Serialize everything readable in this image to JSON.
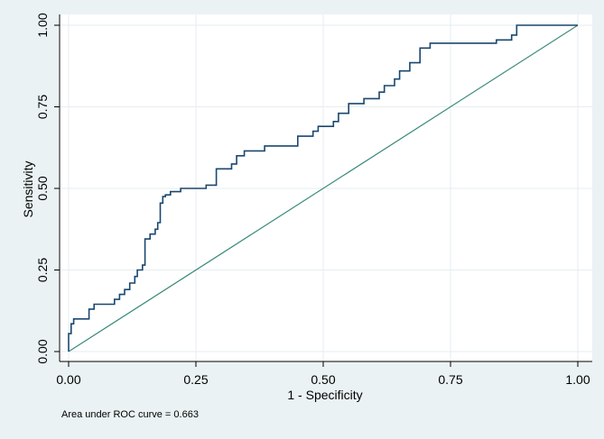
{
  "chart_data": {
    "type": "line",
    "xlabel": "1 - Specificity",
    "ylabel": "Sensitivity",
    "xlim": [
      0,
      1
    ],
    "ylim": [
      0,
      1
    ],
    "x_ticks": [
      0,
      0.25,
      0.5,
      0.75,
      1
    ],
    "x_tick_labels": [
      "0.00",
      "0.25",
      "0.50",
      "0.75",
      "1.00"
    ],
    "y_ticks": [
      0,
      0.25,
      0.5,
      0.75,
      1
    ],
    "y_tick_labels": [
      "0.00",
      "0.25",
      "0.50",
      "0.75",
      "1.00"
    ],
    "grid": true,
    "note": "Area under ROC curve = 0.663",
    "colors": {
      "background": "#eaf2f3",
      "plot_background": "#ffffff",
      "roc_line": "#1a476f",
      "reference_line": "#3a8a7a",
      "grid": "#e6eef0"
    },
    "series": [
      {
        "x": [
          0,
          0,
          0.005,
          0.005,
          0.01,
          0.01,
          0.02,
          0.02,
          0.04,
          0.04,
          0.05,
          0.05,
          0.09,
          0.09,
          0.1,
          0.1,
          0.11,
          0.11,
          0.12,
          0.12,
          0.13,
          0.13,
          0.135,
          0.135,
          0.145,
          0.145,
          0.15,
          0.15,
          0.16,
          0.16,
          0.17,
          0.17,
          0.175,
          0.175,
          0.18,
          0.18,
          0.185,
          0.185,
          0.19,
          0.19,
          0.2,
          0.2,
          0.22,
          0.22,
          0.24,
          0.24,
          0.27,
          0.27,
          0.29,
          0.29,
          0.32,
          0.32,
          0.33,
          0.33,
          0.345,
          0.345,
          0.385,
          0.385,
          0.45,
          0.45,
          0.48,
          0.48,
          0.49,
          0.49,
          0.52,
          0.52,
          0.53,
          0.53,
          0.55,
          0.55,
          0.58,
          0.58,
          0.61,
          0.61,
          0.62,
          0.62,
          0.64,
          0.64,
          0.65,
          0.65,
          0.67,
          0.67,
          0.69,
          0.69,
          0.71,
          0.71,
          0.73,
          0.73,
          0.84,
          0.84,
          0.85,
          0.85,
          0.87,
          0.87,
          0.88,
          0.88,
          1
        ],
        "y": [
          0,
          0.055,
          0.055,
          0.085,
          0.085,
          0.1,
          0.1,
          0.1,
          0.1,
          0.13,
          0.13,
          0.145,
          0.145,
          0.16,
          0.16,
          0.175,
          0.175,
          0.19,
          0.19,
          0.21,
          0.21,
          0.23,
          0.23,
          0.25,
          0.25,
          0.265,
          0.265,
          0.345,
          0.345,
          0.36,
          0.36,
          0.375,
          0.375,
          0.395,
          0.395,
          0.455,
          0.455,
          0.475,
          0.475,
          0.48,
          0.48,
          0.49,
          0.49,
          0.5,
          0.5,
          0.5,
          0.5,
          0.51,
          0.51,
          0.56,
          0.56,
          0.575,
          0.575,
          0.6,
          0.6,
          0.615,
          0.615,
          0.63,
          0.63,
          0.66,
          0.66,
          0.675,
          0.675,
          0.69,
          0.69,
          0.705,
          0.705,
          0.73,
          0.73,
          0.76,
          0.76,
          0.775,
          0.775,
          0.795,
          0.795,
          0.815,
          0.815,
          0.835,
          0.835,
          0.86,
          0.86,
          0.885,
          0.885,
          0.93,
          0.93,
          0.945,
          0.945,
          0.945,
          0.945,
          0.955,
          0.955,
          0.955,
          0.955,
          0.97,
          0.97,
          1,
          1
        ]
      },
      {
        "x": [
          0,
          1
        ],
        "y": [
          0,
          1
        ]
      }
    ]
  }
}
